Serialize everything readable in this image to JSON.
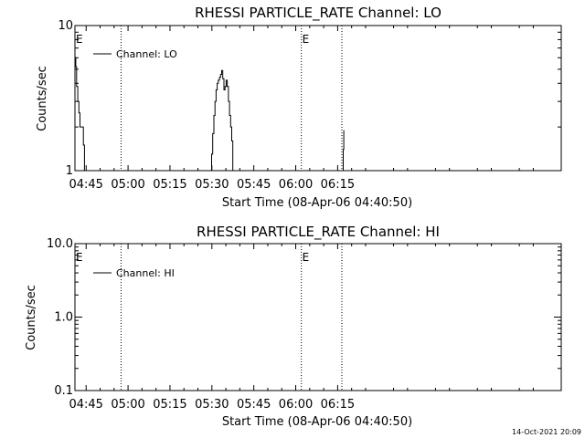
{
  "chart_data": [
    {
      "type": "line",
      "title": "RHESSI PARTICLE_RATE Channel: LO",
      "xlabel": "Start Time (08-Apr-06 04:40:50)",
      "ylabel": "Counts/sec",
      "yscale": "log",
      "ylim": [
        1,
        10
      ],
      "yticks": [
        {
          "v": 1,
          "label": "1"
        },
        {
          "v": 10,
          "label": "10"
        }
      ],
      "xlim_min": [
        281,
        455
      ],
      "xticks": [
        {
          "v": 285,
          "label": "04:45"
        },
        {
          "v": 300,
          "label": "05:00"
        },
        {
          "v": 315,
          "label": "05:15"
        },
        {
          "v": 330,
          "label": "05:30"
        },
        {
          "v": 345,
          "label": "05:45"
        },
        {
          "v": 360,
          "label": "06:00"
        },
        {
          "v": 375,
          "label": "06:15"
        }
      ],
      "markers": [
        {
          "v": 281,
          "label": "E",
          "line": false
        },
        {
          "v": 297.5,
          "label": "",
          "line": true
        },
        {
          "v": 362,
          "label": "E",
          "line": true
        },
        {
          "v": 376.5,
          "label": "",
          "line": true
        }
      ],
      "legend": {
        "position": "top-left",
        "label": "Channel: LO"
      },
      "series": [
        {
          "name": "Channel: LO",
          "points": [
            [
              281.0,
              6.0
            ],
            [
              281.3,
              5.2
            ],
            [
              281.6,
              3.8
            ],
            [
              282.0,
              3.0
            ],
            [
              282.4,
              2.5
            ],
            [
              282.8,
              2.0
            ],
            [
              283.6,
              2.0
            ],
            [
              284.0,
              1.5
            ],
            [
              284.4,
              1.0
            ],
            [
              329.4,
              1.0
            ],
            [
              329.9,
              1.3
            ],
            [
              330.3,
              1.8
            ],
            [
              330.7,
              2.4
            ],
            [
              331.1,
              3.0
            ],
            [
              331.5,
              3.6
            ],
            [
              331.9,
              4.0
            ],
            [
              332.3,
              4.2
            ],
            [
              332.7,
              4.4
            ],
            [
              333.1,
              4.6
            ],
            [
              333.5,
              4.9
            ],
            [
              333.9,
              4.3
            ],
            [
              334.3,
              3.6
            ],
            [
              334.7,
              3.8
            ],
            [
              335.1,
              4.2
            ],
            [
              335.5,
              3.8
            ],
            [
              335.9,
              3.0
            ],
            [
              336.3,
              2.4
            ],
            [
              336.7,
              2.0
            ],
            [
              337.1,
              1.6
            ],
            [
              337.5,
              1.0
            ],
            [
              376.6,
              1.0
            ],
            [
              377.0,
              1.4
            ],
            [
              377.2,
              1.9
            ]
          ]
        }
      ]
    },
    {
      "type": "line",
      "title": "RHESSI PARTICLE_RATE Channel: HI",
      "xlabel": "Start Time (08-Apr-06 04:40:50)",
      "ylabel": "Counts/sec",
      "yscale": "log",
      "ylim": [
        0.1,
        10
      ],
      "yticks": [
        {
          "v": 0.1,
          "label": "0.1"
        },
        {
          "v": 1,
          "label": "1.0"
        },
        {
          "v": 10,
          "label": "10.0"
        }
      ],
      "xlim_min": [
        281,
        455
      ],
      "xticks": [
        {
          "v": 285,
          "label": "04:45"
        },
        {
          "v": 300,
          "label": "05:00"
        },
        {
          "v": 315,
          "label": "05:15"
        },
        {
          "v": 330,
          "label": "05:30"
        },
        {
          "v": 345,
          "label": "05:45"
        },
        {
          "v": 360,
          "label": "06:00"
        },
        {
          "v": 375,
          "label": "06:15"
        }
      ],
      "markers": [
        {
          "v": 281,
          "label": "E",
          "line": false
        },
        {
          "v": 297.5,
          "label": "",
          "line": true
        },
        {
          "v": 362,
          "label": "E",
          "line": true
        },
        {
          "v": 376.5,
          "label": "",
          "line": true
        }
      ],
      "legend": {
        "position": "top-left",
        "label": "Channel: HI"
      },
      "series": [
        {
          "name": "Channel: HI",
          "points": []
        }
      ]
    }
  ],
  "footer": {
    "timestamp": "14-Oct-2021 20:09"
  }
}
